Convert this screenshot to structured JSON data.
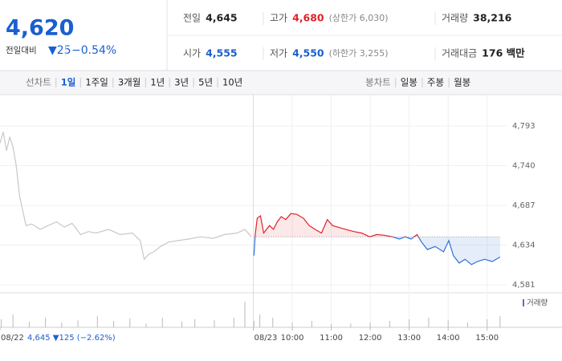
{
  "quote": {
    "price": "4,620",
    "change_label": "전일대비",
    "change": "▼25",
    "change_pct": "−0.54%",
    "stats": [
      {
        "label": "전일",
        "value": "4,645",
        "color": "#222"
      },
      {
        "label": "고가",
        "value": "4,680",
        "note": "(상한가 6,030)",
        "color": "#e0222a"
      },
      {
        "label": "거래량",
        "value": "38,216",
        "color": "#222"
      },
      {
        "label": "시가",
        "value": "4,555",
        "color": "#1a5fd0"
      },
      {
        "label": "저가",
        "value": "4,550",
        "note": "(하한가 3,255)",
        "color": "#1a5fd0"
      },
      {
        "label": "거래대금",
        "value": "176 백만",
        "color": "#222"
      }
    ]
  },
  "line_tabs": {
    "label": "선차트",
    "items": [
      "1일",
      "1주일",
      "3개월",
      "1년",
      "3년",
      "5년",
      "10년"
    ],
    "selected": 0
  },
  "candle_tabs": {
    "label": "봉차트",
    "items": [
      "일봉",
      "주봉",
      "월봉"
    ]
  },
  "chart_data": {
    "type": "line",
    "baseline": 4645,
    "prev_day_note": "4,645 ▼125 (−2.62%)",
    "xlim": [
      0,
      780
    ],
    "ylim": [
      4560,
      4830
    ],
    "xticks": [
      {
        "value": 0,
        "label": "08/22"
      },
      {
        "value": 390,
        "label": "08/23"
      },
      {
        "value": 450,
        "label": "10:00"
      },
      {
        "value": 510,
        "label": "11:00"
      },
      {
        "value": 570,
        "label": "12:00"
      },
      {
        "value": 630,
        "label": "13:00"
      },
      {
        "value": 690,
        "label": "14:00"
      },
      {
        "value": 750,
        "label": "15:00"
      }
    ],
    "yticks": [
      {
        "value": 4581,
        "label": "4,581"
      },
      {
        "value": 4634,
        "label": "4,634"
      },
      {
        "value": 4687,
        "label": "4,687"
      },
      {
        "value": 4740,
        "label": "4,740"
      },
      {
        "value": 4793,
        "label": "4,793"
      }
    ],
    "grid": true,
    "series": [
      {
        "color": "#c8c8c8",
        "x": [
          0,
          5,
          10,
          15,
          20,
          25,
          30,
          35,
          40,
          49,
          62,
          74,
          87,
          99,
          111,
          124,
          136,
          148,
          167,
          185,
          204,
          216,
          222,
          229,
          237,
          247,
          260,
          274,
          290,
          309,
          328,
          346,
          365,
          377,
          387
        ],
        "values": [
          4770,
          4785,
          4760,
          4778,
          4765,
          4740,
          4700,
          4680,
          4660,
          4662,
          4655,
          4660,
          4665,
          4658,
          4663,
          4648,
          4652,
          4650,
          4655,
          4648,
          4650,
          4640,
          4615,
          4622,
          4625,
          4632,
          4638,
          4640,
          4642,
          4645,
          4643,
          4648,
          4650,
          4655,
          4645
        ]
      },
      {
        "color": "#e0222a",
        "color_below": "#2f6fd6",
        "x": [
          391,
          393,
          396,
          401,
          406,
          415,
          421,
          427,
          433,
          440,
          448,
          457,
          467,
          476,
          485,
          495,
          504,
          512,
          520,
          532,
          545,
          557,
          569,
          580,
          592,
          604,
          615,
          624,
          633,
          642,
          649,
          658,
          670,
          683,
          691,
          698,
          707,
          716,
          726,
          735,
          746,
          758,
          770
        ],
        "values": [
          4620,
          4648,
          4670,
          4673,
          4650,
          4660,
          4655,
          4665,
          4672,
          4668,
          4676,
          4675,
          4670,
          4660,
          4655,
          4650,
          4668,
          4660,
          4658,
          4655,
          4652,
          4650,
          4645,
          4648,
          4647,
          4645,
          4642,
          4645,
          4642,
          4648,
          4638,
          4628,
          4632,
          4625,
          4640,
          4620,
          4610,
          4615,
          4608,
          4612,
          4615,
          4612,
          4618
        ]
      }
    ],
    "volume": {
      "name": "거래량",
      "color": "#b9b9c4",
      "ylim": [
        0,
        100
      ],
      "x": [
        2,
        20,
        45,
        70,
        95,
        120,
        150,
        175,
        200,
        225,
        250,
        280,
        300,
        330,
        360,
        377,
        391,
        400,
        420,
        450,
        480,
        510,
        540,
        570,
        600,
        630,
        660,
        690,
        720,
        750,
        770
      ],
      "values": [
        25,
        40,
        18,
        30,
        15,
        22,
        35,
        20,
        28,
        12,
        30,
        18,
        25,
        22,
        30,
        80,
        20,
        40,
        30,
        15,
        20,
        10,
        12,
        15,
        20,
        25,
        30,
        22,
        15,
        25,
        35
      ]
    }
  }
}
